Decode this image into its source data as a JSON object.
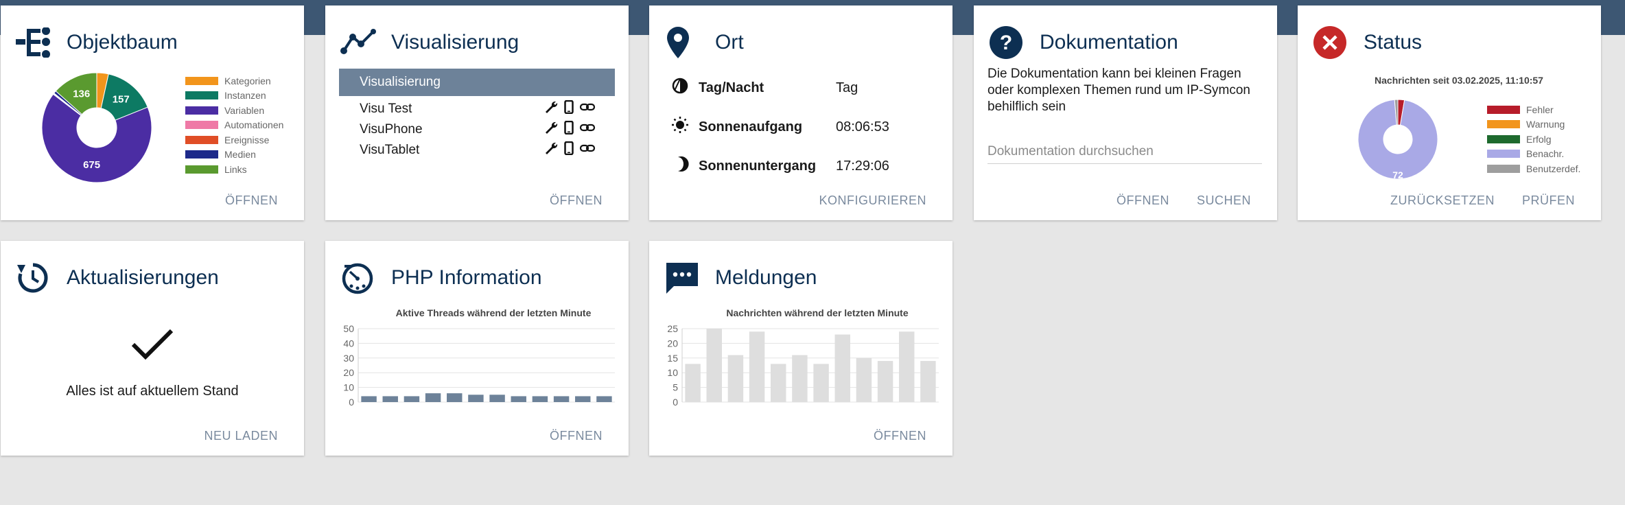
{
  "colors": {
    "header_band": "#3d5773",
    "title": "#0d2f52",
    "accent": "#6d8299",
    "bar_php": "#6d8299",
    "bar_msg": "#dedede"
  },
  "objektbaum": {
    "title": "Objektbaum",
    "icon": "tree-icon",
    "action": "ÖFFNEN",
    "legend": [
      {
        "label": "Kategorien",
        "color": "#f2951c"
      },
      {
        "label": "Instanzen",
        "color": "#0d7a63"
      },
      {
        "label": "Variablen",
        "color": "#4b2da3"
      },
      {
        "label": "Automationen",
        "color": "#ef79a6"
      },
      {
        "label": "Ereignisse",
        "color": "#e04e26"
      },
      {
        "label": "Medien",
        "color": "#1d2a8a"
      },
      {
        "label": "Links",
        "color": "#5a9a2f"
      }
    ],
    "slice_labels": {
      "links": "136",
      "instanzen": "157",
      "variablen": "675"
    }
  },
  "visualisierung": {
    "title": "Visualisierung",
    "icon": "chart-line-icon",
    "header": "Visualisierung",
    "items": [
      {
        "name": "Visu Test"
      },
      {
        "name": "VisuPhone"
      },
      {
        "name": "VisuTablet"
      }
    ],
    "action": "ÖFFNEN"
  },
  "ort": {
    "title": "Ort",
    "icon": "location-pin-icon",
    "rows": [
      {
        "label": "Tag/Nacht",
        "value": "Tag",
        "icon": "day-night-icon"
      },
      {
        "label": "Sonnenaufgang",
        "value": "08:06:53",
        "icon": "sun-icon"
      },
      {
        "label": "Sonnenuntergang",
        "value": "17:29:06",
        "icon": "moon-icon"
      }
    ],
    "action": "KONFIGURIEREN"
  },
  "dokumentation": {
    "title": "Dokumentation",
    "icon": "question-circle-icon",
    "text": "Die Dokumentation kann bei kleinen Fragen oder komplexen Themen rund um IP-Symcon behilflich sein",
    "search_placeholder": "Dokumentation durchsuchen",
    "actions": [
      "ÖFFNEN",
      "SUCHEN"
    ]
  },
  "status": {
    "title": "Status",
    "icon": "error-circle-icon",
    "subtitle": "Nachrichten seit 03.02.2025, 11:10:57",
    "legend": [
      {
        "label": "Fehler",
        "color": "#b71c2a"
      },
      {
        "label": "Warnung",
        "color": "#f2951c"
      },
      {
        "label": "Erfolg",
        "color": "#1e6a2e"
      },
      {
        "label": "Benachr.",
        "color": "#a9a9e6"
      },
      {
        "label": "Benutzerdef.",
        "color": "#9e9e9e"
      }
    ],
    "slice_label": "72",
    "actions": [
      "ZURÜCKSETZEN",
      "PRÜFEN"
    ]
  },
  "aktualisierungen": {
    "title": "Aktualisierungen",
    "icon": "refresh-clock-icon",
    "message": "Alles ist auf aktuellem Stand",
    "action": "NEU LADEN"
  },
  "php": {
    "title": "PHP Information",
    "icon": "php-gauge-icon",
    "action": "ÖFFNEN"
  },
  "meldungen": {
    "title": "Meldungen",
    "icon": "chat-bubble-icon",
    "action": "ÖFFNEN"
  },
  "chart_data": [
    {
      "type": "pie",
      "title": "",
      "categories": [
        "Kategorien",
        "Instanzen",
        "Variablen",
        "Automationen",
        "Ereignisse",
        "Medien",
        "Links"
      ],
      "values": [
        35,
        157,
        675,
        2,
        2,
        8,
        136
      ],
      "donut": true
    },
    {
      "type": "pie",
      "title": "Nachrichten seit 03.02.2025, 11:10:57",
      "categories": [
        "Fehler",
        "Warnung",
        "Erfolg",
        "Benachr.",
        "Benutzerdef."
      ],
      "values": [
        2,
        0,
        0,
        72,
        1
      ],
      "donut": true
    },
    {
      "type": "bar",
      "title": "Aktive Threads während der letzten Minute",
      "xlabel": "",
      "ylabel": "",
      "ylim": [
        0,
        50
      ],
      "yticks": [
        0,
        10,
        20,
        30,
        40,
        50
      ],
      "values": [
        4,
        4,
        4,
        6,
        6,
        5,
        5,
        4,
        4,
        4,
        4,
        4
      ],
      "grid": true
    },
    {
      "type": "bar",
      "title": "Nachrichten während der letzten Minute",
      "xlabel": "",
      "ylabel": "",
      "ylim": [
        0,
        25
      ],
      "yticks": [
        0,
        5,
        10,
        15,
        20,
        25
      ],
      "values": [
        13,
        25,
        16,
        24,
        13,
        16,
        13,
        23,
        15,
        14,
        24,
        14
      ],
      "grid": true
    }
  ]
}
